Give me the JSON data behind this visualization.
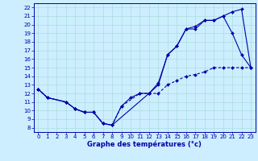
{
  "xlabel": "Graphe des températures (°c)",
  "bg_color": "#cceeff",
  "grid_color": "#aadddd",
  "line_color": "#0000aa",
  "xmin": 0,
  "xmax": 23,
  "ymin": 8,
  "ymax": 22,
  "line_max_x": [
    0,
    1,
    3,
    4,
    5,
    6,
    7,
    8,
    12,
    13,
    14,
    15,
    16,
    17,
    18,
    19,
    20,
    21,
    22,
    23
  ],
  "line_max_y": [
    12.5,
    11.5,
    11.0,
    10.2,
    9.8,
    9.8,
    8.5,
    8.3,
    12.0,
    13.0,
    16.5,
    17.5,
    19.5,
    19.5,
    20.5,
    20.5,
    21.0,
    21.5,
    21.8,
    15.0
  ],
  "line_act_x": [
    0,
    1,
    3,
    4,
    5,
    6,
    7,
    8,
    9,
    10,
    11,
    12,
    13,
    14,
    15,
    16,
    17,
    18,
    19,
    20,
    21,
    22,
    23
  ],
  "line_act_y": [
    12.5,
    11.5,
    11.0,
    10.2,
    9.8,
    9.8,
    8.5,
    8.3,
    10.5,
    11.5,
    12.0,
    12.0,
    13.2,
    16.5,
    17.5,
    19.5,
    19.8,
    20.5,
    20.5,
    21.0,
    19.0,
    16.5,
    15.0
  ],
  "line_min_x": [
    0,
    1,
    3,
    4,
    5,
    6,
    7,
    8,
    9,
    11,
    12,
    13,
    14,
    15,
    16,
    17,
    18,
    19,
    20,
    21,
    22,
    23
  ],
  "line_min_y": [
    12.5,
    11.5,
    11.0,
    10.2,
    9.8,
    9.8,
    8.5,
    8.3,
    10.5,
    12.0,
    12.0,
    12.0,
    13.0,
    13.5,
    14.0,
    14.2,
    14.5,
    15.0,
    15.0,
    15.0,
    15.0,
    15.0
  ],
  "tick_fontsize": 5.0,
  "label_fontsize": 6.0,
  "lw": 0.8,
  "ms": 2.0
}
